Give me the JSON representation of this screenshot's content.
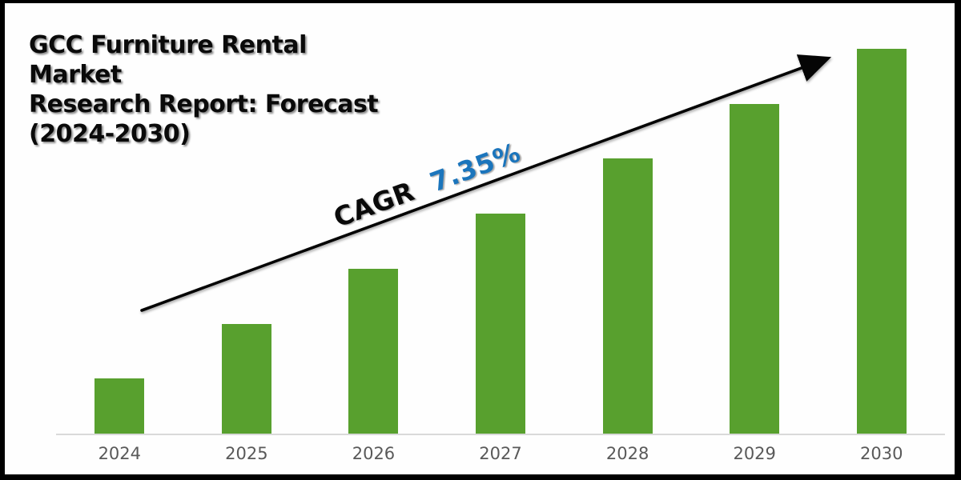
{
  "title": {
    "line1": "GCC Furniture Rental Market",
    "line2": "Research Report: Forecast",
    "line3": "(2024-2030)"
  },
  "annotation": {
    "cagr_label": "CAGR",
    "cagr_value": "7.35%"
  },
  "chart_data": {
    "type": "bar",
    "title": "GCC Furniture Rental Market Research Report: Forecast (2024-2030)",
    "categories": [
      "2024",
      "2025",
      "2026",
      "2027",
      "2028",
      "2029",
      "2030"
    ],
    "values": [
      1,
      2,
      3,
      4,
      5,
      6,
      7
    ],
    "values_note": "no value axis shown; bars grow in equal steps (relative units 1:2:3:4:5:6:7)",
    "xlabel": "",
    "ylabel": "",
    "ylim": [
      0,
      7
    ],
    "grid": false,
    "legend": false,
    "annotations": [
      "CAGR 7.35%",
      "straight trend arrow rising left-to-right across bar tops"
    ]
  },
  "colors": {
    "bar": "#58a02e",
    "axis_line": "#d9d9d9",
    "tick_labels": "#595959",
    "accent_blue": "#1b75bc",
    "arrow": "#050505",
    "frame": "#000000",
    "background": "#fefefe"
  }
}
